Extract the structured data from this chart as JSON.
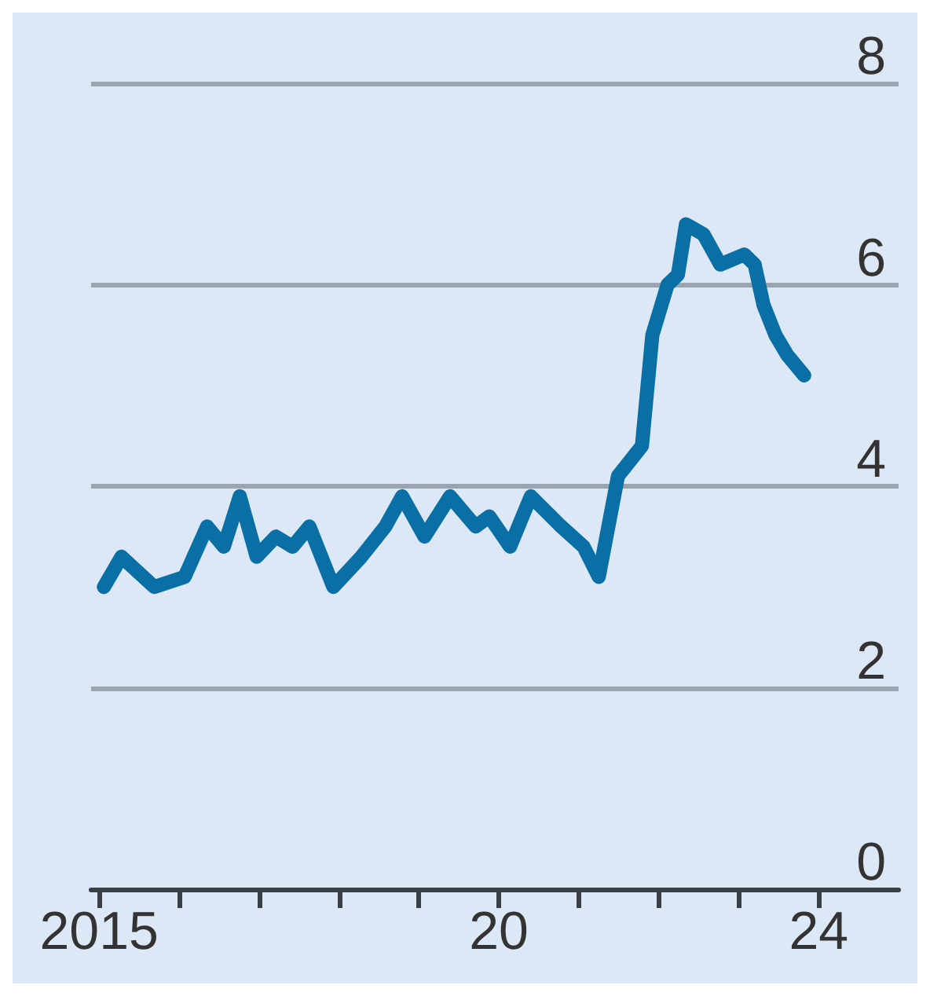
{
  "chart_data": {
    "type": "line",
    "x": [
      2015.06,
      2015.28,
      2015.69,
      2016.07,
      2016.35,
      2016.56,
      2016.76,
      2016.97,
      2017.21,
      2017.42,
      2017.63,
      2017.93,
      2018.28,
      2018.58,
      2018.79,
      2019.07,
      2019.39,
      2019.71,
      2019.88,
      2020.14,
      2020.4,
      2020.78,
      2021.06,
      2021.25,
      2021.49,
      2021.79,
      2021.92,
      2022.11,
      2022.24,
      2022.34,
      2022.56,
      2022.77,
      2023.07,
      2023.2,
      2023.31,
      2023.46,
      2023.61,
      2023.82
    ],
    "series": [
      {
        "color": "#0a6fa5",
        "values": [
          3.0,
          3.3,
          3.0,
          3.1,
          3.6,
          3.4,
          3.9,
          3.3,
          3.5,
          3.4,
          3.6,
          3.0,
          3.3,
          3.6,
          3.9,
          3.5,
          3.9,
          3.6,
          3.7,
          3.4,
          3.9,
          3.6,
          3.4,
          3.1,
          4.1,
          4.4,
          5.5,
          6.0,
          6.1,
          6.6,
          6.5,
          6.2,
          6.3,
          6.2,
          5.8,
          5.5,
          5.3,
          5.1
        ]
      }
    ],
    "xlim": [
      2014.9,
      2025
    ],
    "xticks": [
      {
        "value": 2015,
        "label": "2015"
      },
      {
        "value": 2016,
        "label": null
      },
      {
        "value": 2017,
        "label": null
      },
      {
        "value": 2018,
        "label": null
      },
      {
        "value": 2019,
        "label": null
      },
      {
        "value": 2020,
        "label": "20"
      },
      {
        "value": 2021,
        "label": null
      },
      {
        "value": 2022,
        "label": null
      },
      {
        "value": 2023,
        "label": null
      },
      {
        "value": 2024,
        "label": "24"
      }
    ],
    "ylim": [
      0,
      8
    ],
    "yticks": [
      0,
      2,
      4,
      6,
      8
    ],
    "grid": "y",
    "line_style": "solid"
  }
}
